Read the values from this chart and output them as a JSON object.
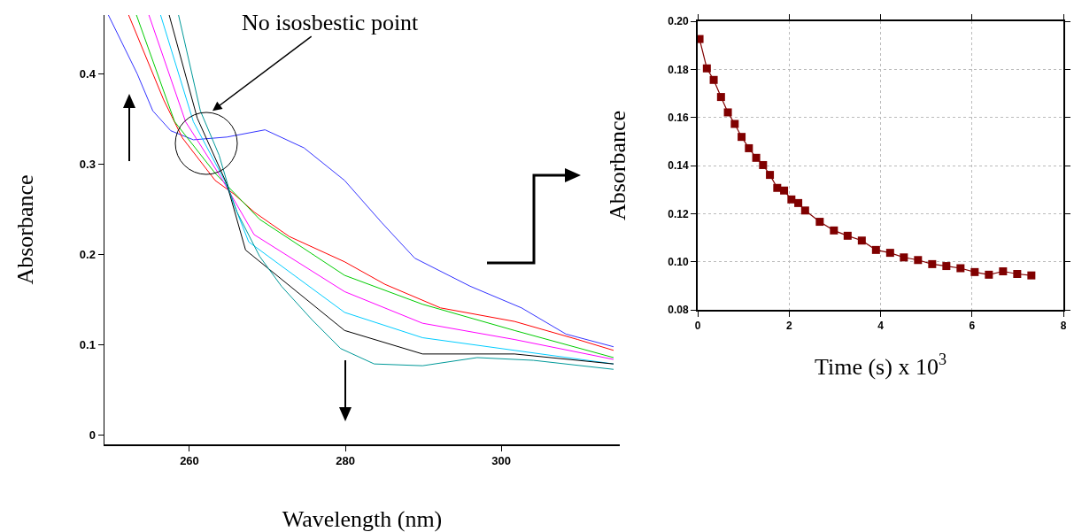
{
  "chart_data": [
    {
      "type": "line",
      "xlabel": "Wavelength (nm)",
      "ylabel": "Absorbance",
      "xlim": [
        249.1,
        315.2
      ],
      "ylim": [
        -0.01,
        0.465
      ],
      "xticks": [
        260,
        280,
        300
      ],
      "yticks": [
        0,
        0.1,
        0.2,
        0.3,
        0.4
      ],
      "grid": false,
      "annotations": [
        "No isosbestic point"
      ],
      "series": [
        {
          "color": "#3333ff",
          "x": [
            249.6,
            253.3,
            255.3,
            257.6,
            260.5,
            264.8,
            269.7,
            274.7,
            279.9,
            284.7,
            288.9,
            296,
            302.6,
            308.3,
            314.4
          ],
          "values": [
            0.465,
            0.4,
            0.359,
            0.337,
            0.327,
            0.33,
            0.338,
            0.318,
            0.282,
            0.235,
            0.196,
            0.165,
            0.141,
            0.112,
            0.098
          ]
        },
        {
          "color": "#ff0000",
          "x": [
            252.2,
            256.7,
            259.1,
            263.3,
            265.7,
            268.3,
            272.8,
            279.9,
            285.1,
            292.2,
            301.7,
            309.8,
            314.4
          ],
          "values": [
            0.465,
            0.371,
            0.329,
            0.282,
            0.267,
            0.247,
            0.22,
            0.192,
            0.167,
            0.141,
            0.126,
            0.106,
            0.094
          ]
        },
        {
          "color": "#00cc00",
          "x": [
            253.2,
            258.1,
            263.3,
            269,
            279.9,
            289.9,
            301.7,
            314.4
          ],
          "values": [
            0.465,
            0.347,
            0.29,
            0.239,
            0.177,
            0.145,
            0.116,
            0.086
          ]
        },
        {
          "color": "#ff00ff",
          "x": [
            254.8,
            259.5,
            264,
            268.3,
            279.9,
            289.9,
            301.7,
            314.4
          ],
          "values": [
            0.465,
            0.347,
            0.286,
            0.222,
            0.159,
            0.124,
            0.106,
            0.084
          ]
        },
        {
          "color": "#00ccff",
          "x": [
            256.3,
            260.5,
            264.5,
            267.6,
            279.9,
            289.9,
            301.7,
            314.4
          ],
          "values": [
            0.465,
            0.347,
            0.282,
            0.214,
            0.136,
            0.108,
            0.094,
            0.079
          ]
        },
        {
          "color": "#000000",
          "x": [
            257.4,
            261,
            264.8,
            267.2,
            279.9,
            289.9,
            301.7,
            314.4
          ],
          "values": [
            0.465,
            0.351,
            0.278,
            0.205,
            0.116,
            0.09,
            0.09,
            0.079
          ]
        },
        {
          "color": "#009999",
          "x": [
            258.6,
            261.4,
            263.8,
            265.2,
            266.1,
            269,
            271.8,
            275.7,
            279.4,
            283.7,
            289.9,
            296.9,
            304.1,
            314.4
          ],
          "values": [
            0.465,
            0.359,
            0.31,
            0.269,
            0.247,
            0.198,
            0.165,
            0.128,
            0.096,
            0.079,
            0.077,
            0.086,
            0.083,
            0.073
          ]
        }
      ]
    },
    {
      "type": "line",
      "xlabel": "Time (s) x 10$^{3}$",
      "ylabel": "Absorbance",
      "xlim": [
        0,
        8
      ],
      "ylim": [
        0.08,
        0.2
      ],
      "xticks": [
        0,
        2,
        4,
        6,
        8
      ],
      "yticks": [
        {
          "value": 0.08,
          "label": "0.08"
        },
        {
          "value": 0.1,
          "label": "0.10"
        },
        {
          "value": 0.12,
          "label": "0.12"
        },
        {
          "value": 0.14,
          "label": "0.14"
        },
        {
          "value": 0.16,
          "label": "0.16"
        },
        {
          "value": 0.18,
          "label": "0.18"
        },
        {
          "value": 0.2,
          "label": "0.20"
        }
      ],
      "grid": true,
      "marker": "square",
      "series": [
        {
          "color": "#800000",
          "x": [
            0.04,
            0.2,
            0.35,
            0.51,
            0.66,
            0.81,
            0.96,
            1.12,
            1.28,
            1.43,
            1.58,
            1.74,
            1.89,
            2.05,
            2.2,
            2.35,
            2.67,
            2.98,
            3.28,
            3.59,
            3.9,
            4.21,
            4.51,
            4.82,
            5.13,
            5.44,
            5.75,
            6.06,
            6.37,
            6.68,
            6.99,
            7.3
          ],
          "values": [
            0.1926,
            0.1804,
            0.1756,
            0.1685,
            0.1621,
            0.1573,
            0.1519,
            0.1472,
            0.1432,
            0.1402,
            0.1361,
            0.1307,
            0.1296,
            0.1259,
            0.1244,
            0.1213,
            0.1166,
            0.113,
            0.1108,
            0.1088,
            0.1049,
            0.1037,
            0.1018,
            0.1007,
            0.099,
            0.0982,
            0.0973,
            0.0957,
            0.0946,
            0.096,
            0.0949,
            0.0943
          ]
        }
      ]
    }
  ]
}
